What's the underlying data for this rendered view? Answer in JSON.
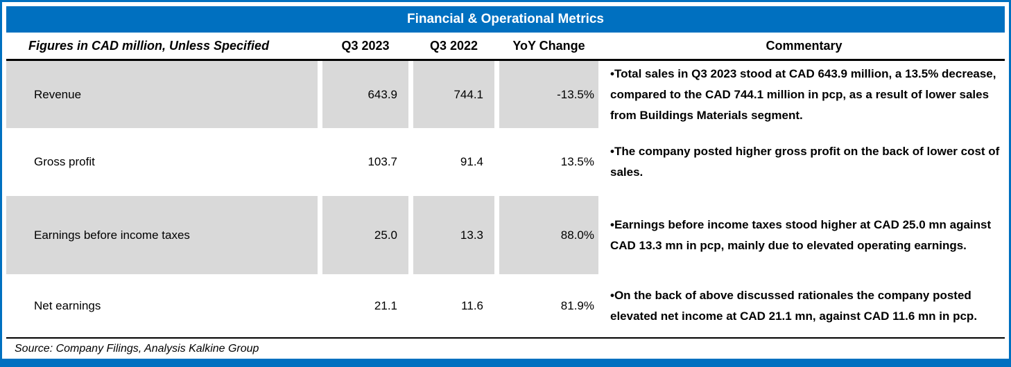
{
  "title": "Financial & Operational Metrics",
  "colors": {
    "header_bg": "#0070C0",
    "border": "#0070C0",
    "shaded_row": "#D9D9D9",
    "header_rule": "#000000"
  },
  "table": {
    "headers": {
      "metric": "Figures in CAD million, Unless Specified",
      "q3_2023": "Q3 2023",
      "q3_2022": "Q3 2022",
      "yoy": "YoY Change",
      "commentary": "Commentary"
    },
    "rows": [
      {
        "metric": "Revenue",
        "q3_2023": "643.9",
        "q3_2022": "744.1",
        "yoy": "-13.5%",
        "commentary": "•Total sales in Q3 2023 stood at CAD 643.9 million, a 13.5% decrease, compared to the CAD 744.1 million in pcp, as a result of lower sales from Buildings Materials segment."
      },
      {
        "metric": "Gross profit",
        "q3_2023": "103.7",
        "q3_2022": "91.4",
        "yoy": "13.5%",
        "commentary": "•The company posted higher gross profit on the back of lower cost of sales."
      },
      {
        "metric": "Earnings before income taxes",
        "q3_2023": "25.0",
        "q3_2022": "13.3",
        "yoy": "88.0%",
        "commentary": "•Earnings before income taxes stood higher at CAD 25.0 mn against CAD 13.3 mn in pcp, mainly due to elevated operating earnings."
      },
      {
        "metric": "Net earnings",
        "q3_2023": "21.1",
        "q3_2022": "11.6",
        "yoy": "81.9%",
        "commentary": "•On the back of above discussed rationales the company posted elevated net income at CAD 21.1 mn, against CAD 11.6 mn in pcp."
      }
    ]
  },
  "footer": {
    "source": "Source: Company Filings, Analysis Kalkine Group"
  }
}
